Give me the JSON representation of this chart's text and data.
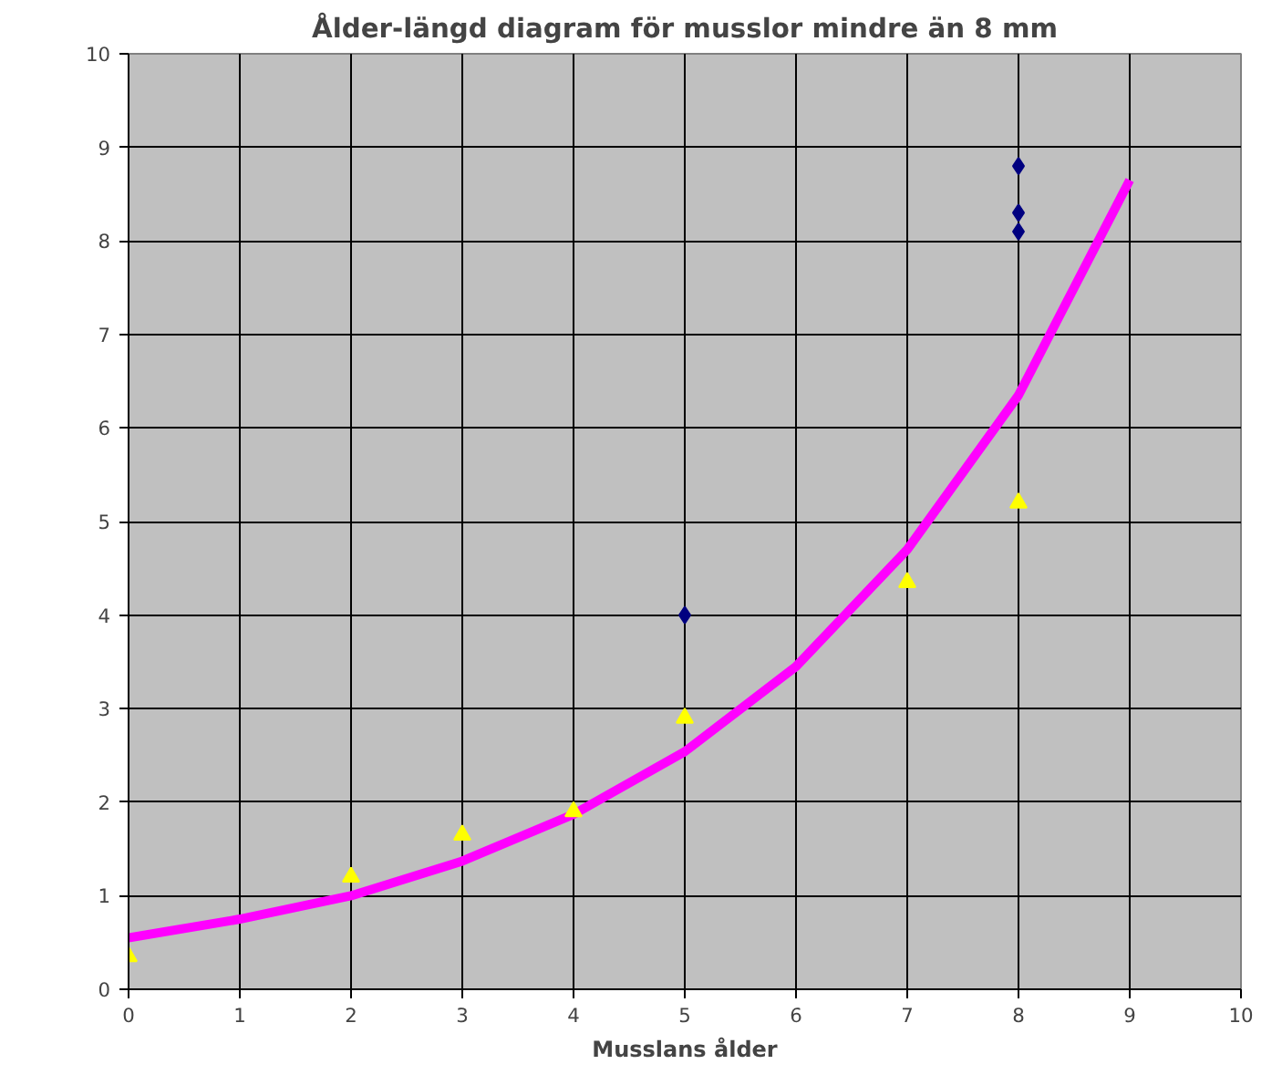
{
  "chart_data": {
    "type": "scatter",
    "title": "Ålder-längd diagram för musslor mindre än 8 mm",
    "xlabel": "Musslans ålder",
    "xlim": [
      0,
      10
    ],
    "ylim": [
      0,
      10
    ],
    "xticks": [
      0,
      1,
      2,
      3,
      4,
      5,
      6,
      7,
      8,
      9,
      10
    ],
    "yticks": [
      0,
      1,
      2,
      3,
      4,
      5,
      6,
      7,
      8,
      9,
      10
    ],
    "grid": true,
    "series": [
      {
        "marker": "diamond",
        "color": "#000080",
        "x": [
          5,
          8,
          8,
          8
        ],
        "values": [
          4.0,
          8.8,
          8.3,
          8.1
        ]
      },
      {
        "marker": "triangle",
        "color": "#ffff00",
        "x": [
          0,
          2,
          3,
          4,
          5,
          7,
          8
        ],
        "values": [
          0.35,
          1.2,
          1.65,
          1.9,
          2.9,
          4.35,
          5.2
        ]
      },
      {
        "type": "line",
        "line_style": "solid",
        "color": "#ff00ff",
        "x": [
          0,
          1,
          2,
          3,
          4,
          5,
          6,
          7,
          8,
          9
        ],
        "values": [
          0.55,
          0.75,
          1.0,
          1.37,
          1.87,
          2.54,
          3.45,
          4.7,
          6.35,
          8.65
        ]
      }
    ]
  }
}
